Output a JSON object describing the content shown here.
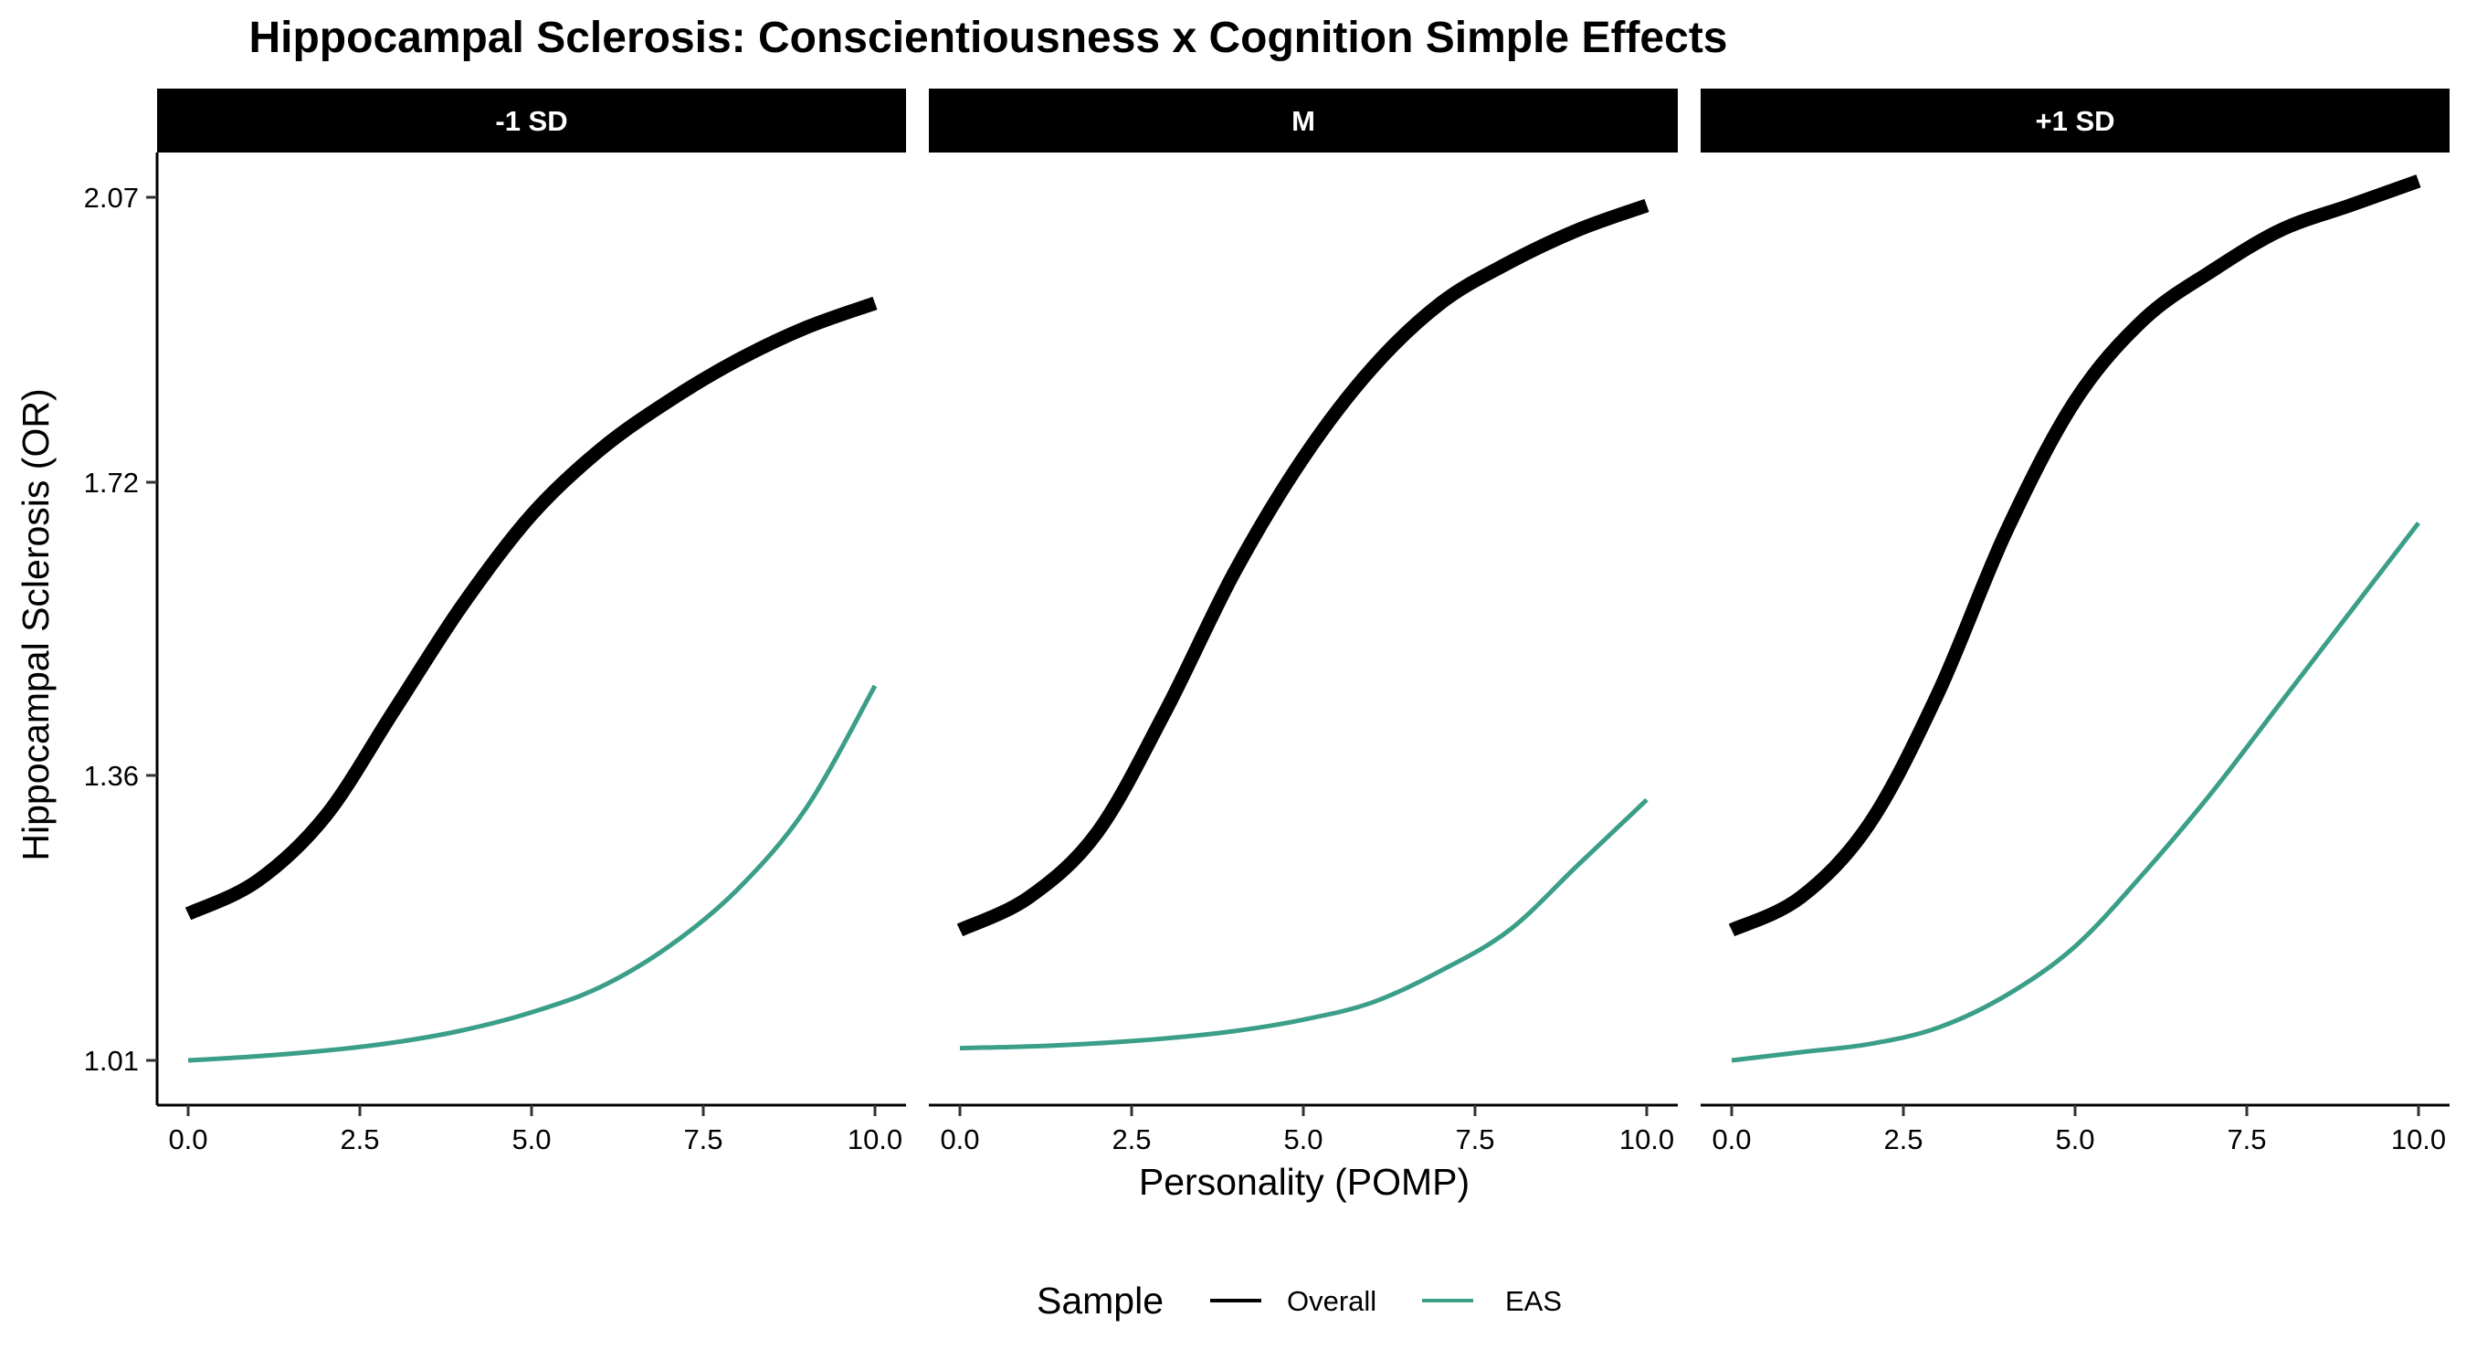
{
  "chart_data": {
    "type": "line",
    "title": "Hippocampal Sclerosis: Conscientiousness x Cognition Simple Effects",
    "xlabel": "Personality (POMP)",
    "ylabel": "Hippocampal Sclerosis (OR)",
    "xlim": [
      0,
      10
    ],
    "ylim": [
      1.01,
      2.07
    ],
    "x_ticks": [
      "0.0",
      "2.5",
      "5.0",
      "7.5",
      "10.0"
    ],
    "x_tick_values": [
      0,
      2.5,
      5,
      7.5,
      10
    ],
    "y_ticks": [
      "1.01",
      "1.36",
      "1.72",
      "2.07"
    ],
    "y_tick_values": [
      1.01,
      1.36,
      1.72,
      2.07
    ],
    "grid": false,
    "legend": {
      "title": "Sample",
      "position": "bottom",
      "entries": [
        {
          "name": "Overall",
          "color": "#000000"
        },
        {
          "name": "EAS",
          "color": "#3a9e88"
        }
      ]
    },
    "x": [
      0,
      1,
      2,
      3,
      4,
      5,
      6,
      7,
      8,
      9,
      10
    ],
    "panels": [
      {
        "label": "-1 SD",
        "series": [
          {
            "name": "Overall",
            "color": "#000000",
            "values": [
              1.19,
              1.23,
              1.31,
              1.44,
              1.57,
              1.68,
              1.76,
              1.82,
              1.87,
              1.91,
              1.94
            ]
          },
          {
            "name": "EAS",
            "color": "#3a9e88",
            "values": [
              1.01,
              1.015,
              1.022,
              1.032,
              1.047,
              1.069,
              1.1,
              1.15,
              1.22,
              1.32,
              1.47
            ]
          }
        ]
      },
      {
        "label": "M",
        "series": [
          {
            "name": "Overall",
            "color": "#000000",
            "values": [
              1.17,
              1.21,
              1.29,
              1.44,
              1.61,
              1.75,
              1.86,
              1.94,
              1.99,
              2.03,
              2.06
            ]
          },
          {
            "name": "EAS",
            "color": "#3a9e88",
            "values": [
              1.025,
              1.027,
              1.031,
              1.037,
              1.046,
              1.06,
              1.081,
              1.12,
              1.17,
              1.25,
              1.33
            ]
          }
        ]
      },
      {
        "label": "+1 SD",
        "series": [
          {
            "name": "Overall",
            "color": "#000000",
            "values": [
              1.17,
              1.21,
              1.3,
              1.46,
              1.66,
              1.82,
              1.92,
              1.98,
              2.03,
              2.06,
              2.09
            ]
          },
          {
            "name": "EAS",
            "color": "#3a9e88",
            "values": [
              1.01,
              1.02,
              1.03,
              1.05,
              1.09,
              1.15,
              1.24,
              1.34,
              1.45,
              1.56,
              1.67
            ]
          }
        ]
      }
    ]
  }
}
